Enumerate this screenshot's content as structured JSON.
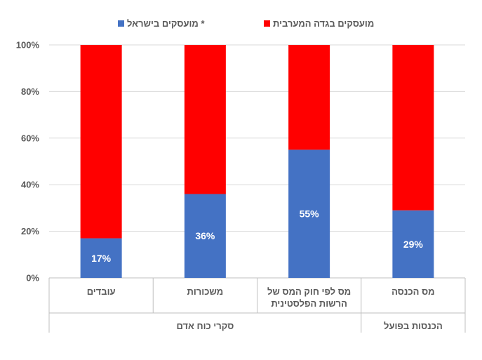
{
  "chart_data": {
    "type": "bar",
    "stacked": true,
    "percent": true,
    "categories": [
      "עובדים",
      "משכורות",
      "מס לפי חוק המס של הרשות הפלסטינית",
      "מס הכנסה"
    ],
    "category_lines": [
      [
        "עובדים"
      ],
      [
        "משכורות"
      ],
      [
        "מס לפי חוק המס של",
        "הרשות הפלסטינית"
      ],
      [
        "מס הכנסה"
      ]
    ],
    "groups": [
      {
        "label": "סקרי כוח אדם",
        "categories": [
          0,
          1,
          2
        ]
      },
      {
        "label": "הכנסות בפועל",
        "categories": [
          3
        ]
      }
    ],
    "series": [
      {
        "name": "מועסקים בישראל *",
        "color": "#4472C4",
        "values": [
          17,
          36,
          55,
          29
        ],
        "labels": [
          "17%",
          "36%",
          "55%",
          "29%"
        ]
      },
      {
        "name": "מועסקים בגדה המערבית",
        "color": "#FF0000",
        "values": [
          83,
          64,
          45,
          71
        ]
      }
    ],
    "yticks": [
      "0%",
      "20%",
      "40%",
      "60%",
      "80%",
      "100%"
    ],
    "ylim": [
      0,
      100
    ],
    "grid": true,
    "legend": "top"
  }
}
